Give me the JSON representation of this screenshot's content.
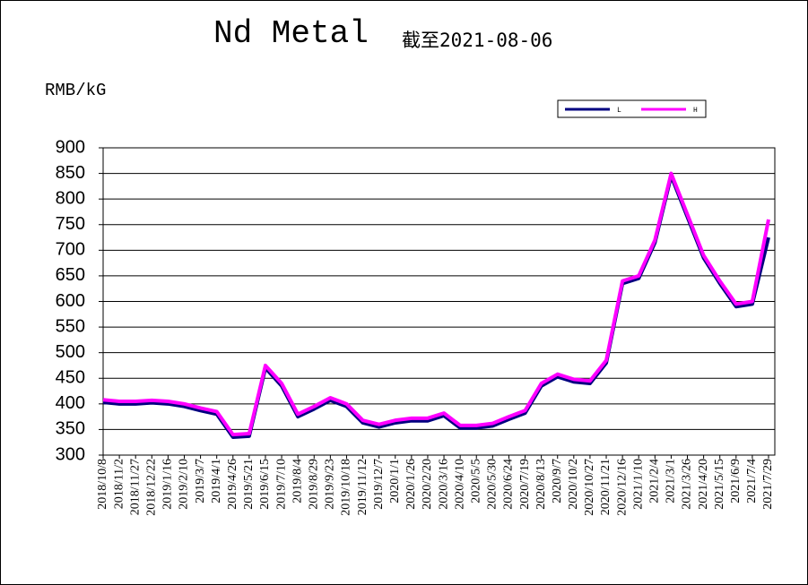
{
  "chart_data": {
    "type": "line",
    "title": "Nd Metal",
    "subtitle": "截至2021-08-06",
    "y_label": "RMB/kG",
    "categories": [
      "2018/10/8",
      "2018/11/2",
      "2018/11/27",
      "2018/12/22",
      "2019/1/16",
      "2019/2/10",
      "2019/3/7",
      "2019/4/1",
      "2019/4/26",
      "2019/5/21",
      "2019/6/15",
      "2019/7/10",
      "2019/8/4",
      "2019/8/29",
      "2019/9/23",
      "2019/10/18",
      "2019/11/12",
      "2019/12/7",
      "2020/1/1",
      "2020/1/26",
      "2020/2/20",
      "2020/3/16",
      "2020/4/10",
      "2020/5/5",
      "2020/5/30",
      "2020/6/24",
      "2020/7/19",
      "2020/8/13",
      "2020/9/7",
      "2020/10/2",
      "2020/10/27",
      "2020/11/21",
      "2020/12/16",
      "2021/1/10",
      "2021/2/4",
      "2021/3/1",
      "2021/3/26",
      "2021/4/20",
      "2021/5/15",
      "2021/6/9",
      "2021/7/4",
      "2021/7/29"
    ],
    "series": [
      {
        "name": "L",
        "color": "#000080",
        "values": [
          403,
          400,
          400,
          402,
          400,
          395,
          387,
          380,
          335,
          337,
          470,
          435,
          375,
          390,
          407,
          395,
          363,
          355,
          363,
          367,
          367,
          377,
          353,
          353,
          357,
          370,
          382,
          435,
          453,
          443,
          440,
          480,
          635,
          645,
          715,
          845,
          765,
          685,
          635,
          590,
          595,
          725
        ]
      },
      {
        "name": "H",
        "color": "#ff00ff",
        "values": [
          408,
          405,
          405,
          407,
          405,
          400,
          392,
          385,
          340,
          342,
          475,
          440,
          380,
          395,
          412,
          400,
          368,
          360,
          368,
          372,
          372,
          382,
          358,
          358,
          362,
          375,
          387,
          440,
          458,
          448,
          445,
          485,
          640,
          650,
          720,
          850,
          770,
          690,
          640,
          595,
          600,
          760
        ]
      }
    ],
    "ylim": [
      300,
      900
    ],
    "yticks": [
      300,
      350,
      400,
      450,
      500,
      550,
      600,
      650,
      700,
      750,
      800,
      850,
      900
    ],
    "grid": true,
    "legend": "top-right"
  }
}
